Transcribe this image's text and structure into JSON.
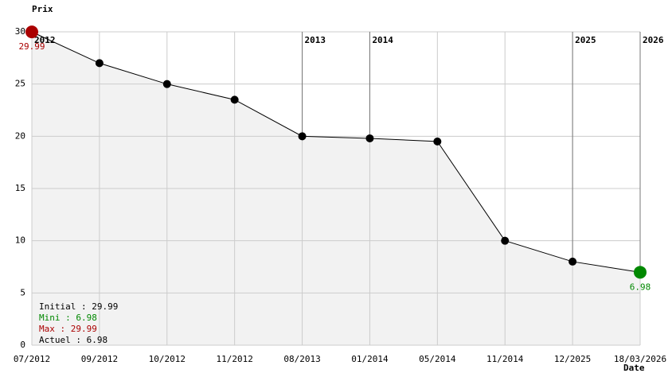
{
  "chart_data": {
    "type": "line",
    "y_axis_title": "Prix",
    "x_axis_title": "Date",
    "categories": [
      "07/2012",
      "09/2012",
      "10/2012",
      "11/2012",
      "08/2013",
      "01/2014",
      "05/2014",
      "11/2014",
      "12/2025",
      "18/03/2026"
    ],
    "values": [
      29.99,
      27,
      25,
      23.5,
      20,
      19.8,
      19.5,
      10,
      8,
      6.98
    ],
    "ylim": [
      0,
      30
    ],
    "yticks": [
      0,
      5,
      10,
      15,
      20,
      25,
      30
    ],
    "grid": true,
    "line_color": "#000000",
    "point_color": "#000000",
    "fill_color": "#f2f2f2",
    "max_color": "#aa0000",
    "min_color": "#008800",
    "year_markers": [
      "2012",
      "2013",
      "2014",
      "2025",
      "2026"
    ],
    "summary": [
      {
        "text": "Initial : 29.99",
        "color": "#000000"
      },
      {
        "text": "Mini : 6.98",
        "color": "#008800"
      },
      {
        "text": "Max : 29.99",
        "color": "#aa0000"
      },
      {
        "text": "Actuel : 6.98",
        "color": "#000000"
      }
    ]
  }
}
